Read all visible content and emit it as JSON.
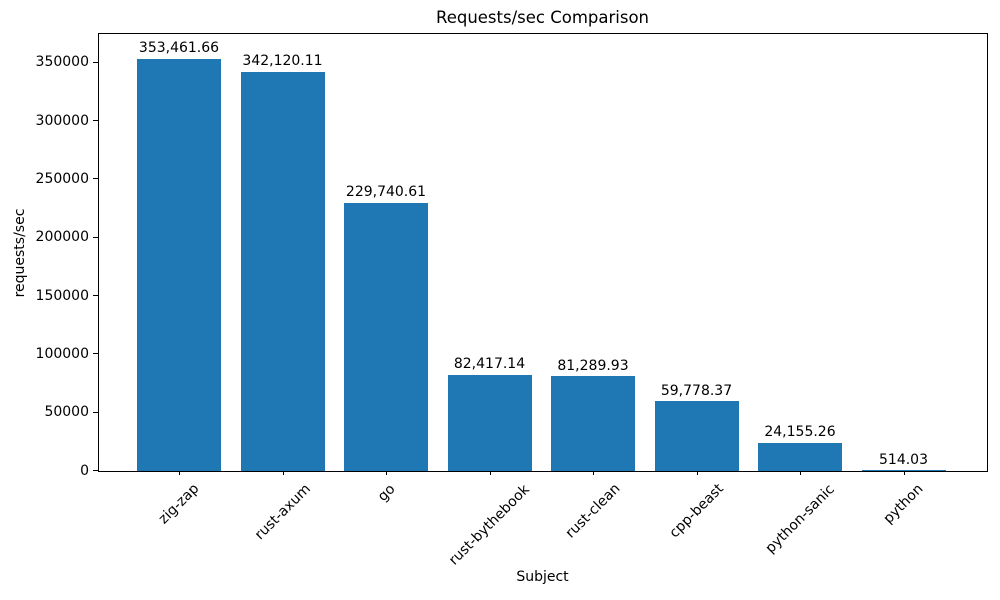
{
  "chart_data": {
    "type": "bar",
    "title": "Requests/sec Comparison",
    "xlabel": "Subject",
    "ylabel": "requests/sec",
    "categories": [
      "zig-zap",
      "rust-axum",
      "go",
      "rust-bythebook",
      "rust-clean",
      "cpp-beast",
      "python-sanic",
      "python"
    ],
    "values": [
      353461.66,
      342120.11,
      229740.61,
      82417.14,
      81289.93,
      59778.37,
      24155.26,
      514.03
    ],
    "value_labels": [
      "353,461.66",
      "342,120.11",
      "229,740.61",
      "82,417.14",
      "81,289.93",
      "59,778.37",
      "24,155.26",
      "514.03"
    ],
    "yticks": [
      0,
      50000,
      100000,
      150000,
      200000,
      250000,
      300000,
      350000
    ],
    "ytick_labels": [
      "0",
      "50000",
      "100000",
      "150000",
      "200000",
      "250000",
      "300000",
      "350000"
    ],
    "ylim": [
      0,
      375000
    ],
    "bar_color": "#1f77b4",
    "spine_color": "#000000",
    "grid": false,
    "legend": null
  }
}
